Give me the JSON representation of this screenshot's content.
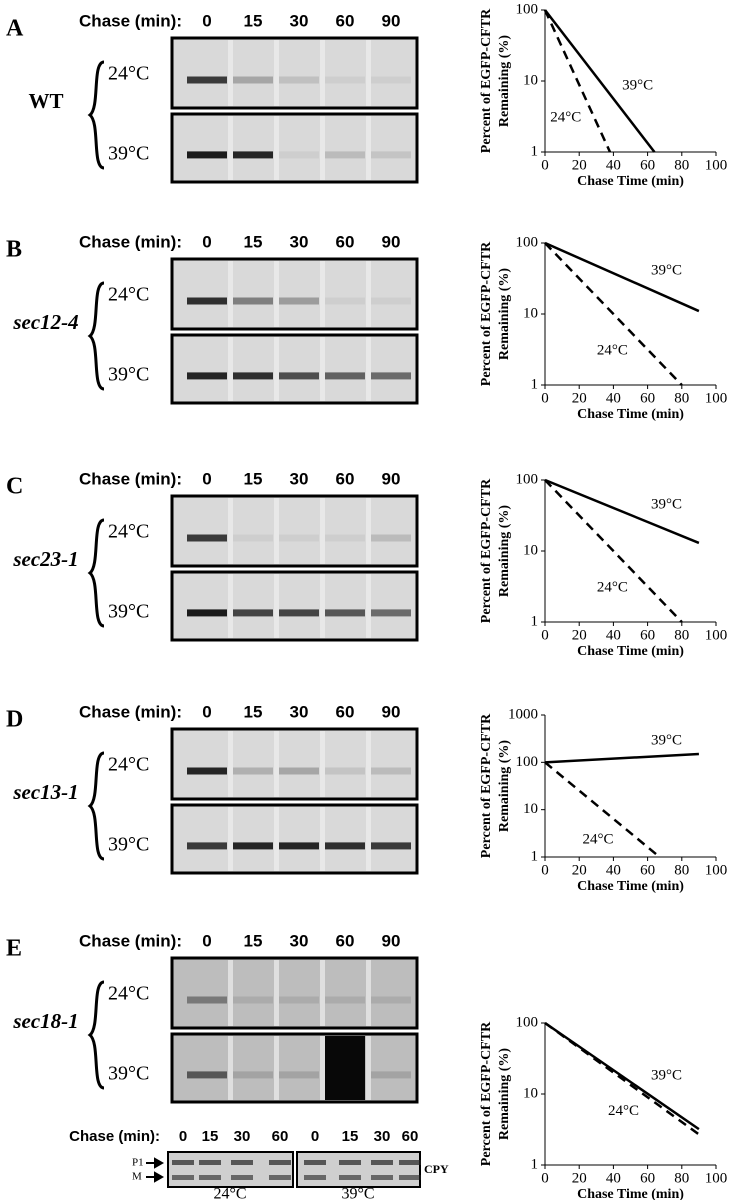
{
  "panels": [
    {
      "letter": "A",
      "strain": "WT",
      "chase_label": "Chase (min):",
      "times": [
        "0",
        "15",
        "30",
        "60",
        "90"
      ],
      "temps": [
        "24°C",
        "39°C"
      ]
    },
    {
      "letter": "B",
      "strain": "sec12-4",
      "chase_label": "Chase (min):",
      "times": [
        "0",
        "15",
        "30",
        "60",
        "90"
      ],
      "temps": [
        "24°C",
        "39°C"
      ]
    },
    {
      "letter": "C",
      "strain": "sec23-1",
      "chase_label": "Chase (min):",
      "times": [
        "0",
        "15",
        "30",
        "60",
        "90"
      ],
      "temps": [
        "24°C",
        "39°C"
      ]
    },
    {
      "letter": "D",
      "strain": "sec13-1",
      "chase_label": "Chase (min):",
      "times": [
        "0",
        "15",
        "30",
        "60",
        "90"
      ],
      "temps": [
        "24°C",
        "39°C"
      ]
    },
    {
      "letter": "E",
      "strain": "sec18-1",
      "chase_label": "Chase (min):",
      "times": [
        "0",
        "15",
        "30",
        "60",
        "90"
      ],
      "temps": [
        "24°C",
        "39°C"
      ]
    }
  ],
  "cpy": {
    "chase_label": "Chase (min):",
    "times": [
      "0",
      "15",
      "30",
      "60",
      "0",
      "15",
      "30",
      "60"
    ],
    "markers": [
      "P1",
      "M"
    ],
    "label": "CPY",
    "temps": [
      "24°C",
      "39°C"
    ]
  },
  "chart_data": [
    {
      "type": "line",
      "ylabel": [
        "Percent of EGFP-CFTR",
        "Remaining (%)"
      ],
      "xlabel": "Chase Time (min)",
      "log_y": true,
      "xlim": [
        0,
        100
      ],
      "xticks": [
        0,
        20,
        40,
        60,
        80,
        100
      ],
      "ylim": [
        1,
        100
      ],
      "yticks": [
        1,
        10,
        100
      ],
      "series": [
        {
          "name": "39°C",
          "color": "#000000",
          "dashed": false,
          "x": [
            0,
            64
          ],
          "values": [
            100,
            1
          ]
        },
        {
          "name": "24°C",
          "color": "#000000",
          "dashed": true,
          "x": [
            0,
            38
          ],
          "values": [
            100,
            1
          ]
        }
      ]
    },
    {
      "type": "line",
      "ylabel": [
        "Percent of EGFP-CFTR",
        "Remaining (%)"
      ],
      "xlabel": "Chase Time (min)",
      "log_y": true,
      "xlim": [
        0,
        100
      ],
      "xticks": [
        0,
        20,
        40,
        60,
        80,
        100
      ],
      "ylim": [
        1,
        100
      ],
      "yticks": [
        1,
        10,
        100
      ],
      "series": [
        {
          "name": "39°C",
          "color": "#000000",
          "dashed": false,
          "x": [
            0,
            90
          ],
          "values": [
            100,
            11
          ]
        },
        {
          "name": "24°C",
          "color": "#000000",
          "dashed": true,
          "x": [
            0,
            80
          ],
          "values": [
            100,
            1
          ]
        }
      ]
    },
    {
      "type": "line",
      "ylabel": [
        "Percent of EGFP-CFTR",
        "Remaining (%)"
      ],
      "xlabel": "Chase Time (min)",
      "log_y": true,
      "xlim": [
        0,
        100
      ],
      "xticks": [
        0,
        20,
        40,
        60,
        80,
        100
      ],
      "ylim": [
        1,
        100
      ],
      "yticks": [
        1,
        10,
        100
      ],
      "series": [
        {
          "name": "39°C",
          "color": "#000000",
          "dashed": false,
          "x": [
            0,
            90
          ],
          "values": [
            100,
            13
          ]
        },
        {
          "name": "24°C",
          "color": "#000000",
          "dashed": true,
          "x": [
            0,
            80
          ],
          "values": [
            100,
            1
          ]
        }
      ]
    },
    {
      "type": "line",
      "ylabel": [
        "Percent of EGFP-CFTR",
        "Remaining (%)"
      ],
      "xlabel": "Chase Time (min)",
      "log_y": true,
      "xlim": [
        0,
        100
      ],
      "xticks": [
        0,
        20,
        40,
        60,
        80,
        100
      ],
      "ylim": [
        1,
        1000
      ],
      "yticks": [
        1,
        10,
        100,
        1000
      ],
      "series": [
        {
          "name": "39°C",
          "color": "#000000",
          "dashed": false,
          "x": [
            0,
            90
          ],
          "values": [
            100,
            150
          ]
        },
        {
          "name": "24°C",
          "color": "#000000",
          "dashed": true,
          "x": [
            0,
            67
          ],
          "values": [
            100,
            1
          ]
        }
      ]
    },
    {
      "type": "line",
      "ylabel": [
        "Percent of EGFP-CFTR",
        "Remaining (%)"
      ],
      "xlabel": "Chase Time (min)",
      "log_y": true,
      "xlim": [
        0,
        100
      ],
      "xticks": [
        0,
        20,
        40,
        60,
        80,
        100
      ],
      "ylim": [
        1,
        100
      ],
      "yticks": [
        1,
        10,
        100
      ],
      "series": [
        {
          "name": "39°C",
          "color": "#000000",
          "dashed": false,
          "x": [
            0,
            90
          ],
          "values": [
            100,
            3.2
          ]
        },
        {
          "name": "24°C",
          "color": "#000000",
          "dashed": true,
          "x": [
            0,
            90
          ],
          "values": [
            100,
            2.7
          ]
        }
      ]
    }
  ]
}
